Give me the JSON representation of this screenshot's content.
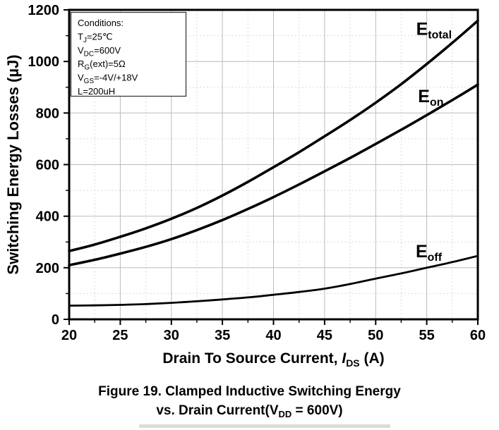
{
  "caption": {
    "line1": "Figure 19. Clamped Inductive Switching Energy",
    "line2_segments": [
      {
        "t": "vs. Drain Current(V"
      },
      {
        "t": "DD",
        "sub": true
      },
      {
        "t": " = 600V)"
      }
    ]
  },
  "chart_data": {
    "type": "line",
    "title": "",
    "ylabel": "Switching Energy Losses (µJ)",
    "xlabel_segments": [
      {
        "t": "Drain To Source Current, "
      },
      {
        "t": "I",
        "italic": true
      },
      {
        "t": "DS",
        "sub": true
      },
      {
        "t": " (A)"
      }
    ],
    "xlim": [
      20,
      60
    ],
    "ylim": [
      0,
      1200
    ],
    "x_major_ticks": [
      20,
      25,
      30,
      35,
      40,
      45,
      50,
      55,
      60
    ],
    "x_minor_ticks": [
      22.5,
      27.5,
      32.5,
      37.5,
      42.5,
      47.5,
      52.5,
      57.5
    ],
    "y_major_ticks": [
      0,
      200,
      400,
      600,
      800,
      1000,
      1200
    ],
    "y_minor_ticks": [
      100,
      300,
      500,
      700,
      900,
      1100
    ],
    "grid": {
      "major": "solid",
      "minor": "dotted"
    },
    "legend_position": "inline-curve-labels",
    "x": [
      20,
      22.5,
      25,
      27.5,
      30,
      32.5,
      35,
      37.5,
      40,
      42.5,
      45,
      47.5,
      50,
      52.5,
      55,
      57.5,
      60
    ],
    "series": [
      {
        "name": "E_total",
        "label": {
          "main": "E",
          "sub": "total"
        },
        "label_at": {
          "x": 55.7,
          "y": 1125
        },
        "values": [
          265,
          290,
          320,
          353,
          390,
          432,
          480,
          533,
          590,
          648,
          710,
          773,
          840,
          912,
          990,
          1072,
          1158
        ]
      },
      {
        "name": "E_on",
        "label": {
          "main": "E",
          "sub": "on"
        },
        "label_at": {
          "x": 55.4,
          "y": 864
        },
        "values": [
          210,
          231,
          255,
          281,
          311,
          346,
          385,
          428,
          474,
          523,
          574,
          626,
          680,
          735,
          792,
          850,
          910
        ]
      },
      {
        "name": "E_off",
        "label": {
          "main": "E",
          "sub": "off"
        },
        "label_at": {
          "x": 55.2,
          "y": 262
        },
        "values": [
          53,
          54,
          56,
          59,
          64,
          70,
          77,
          85,
          95,
          106,
          119,
          137,
          158,
          178,
          200,
          222,
          246
        ]
      }
    ],
    "conditions_box": {
      "lines": [
        [
          {
            "t": "Conditions:"
          }
        ],
        [
          {
            "t": "T"
          },
          {
            "t": "J",
            "sub": true
          },
          {
            "t": "=25℃"
          }
        ],
        [
          {
            "t": "V"
          },
          {
            "t": "DC",
            "sub": true
          },
          {
            "t": "=600V"
          }
        ],
        [
          {
            "t": "R"
          },
          {
            "t": "G",
            "sub": true
          },
          {
            "t": "(ext)=5Ω"
          }
        ],
        [
          {
            "t": "V"
          },
          {
            "t": "GS",
            "sub": true
          },
          {
            "t": "=-4V/+18V"
          }
        ],
        [
          {
            "t": "L=200uH"
          }
        ]
      ]
    },
    "colors": {
      "curve": "#000000",
      "axis": "#000000",
      "grid_major": "#bcbcbc",
      "grid_minor": "#dadada",
      "box_border": "#3a3a3a",
      "background": "#ffffff"
    }
  }
}
